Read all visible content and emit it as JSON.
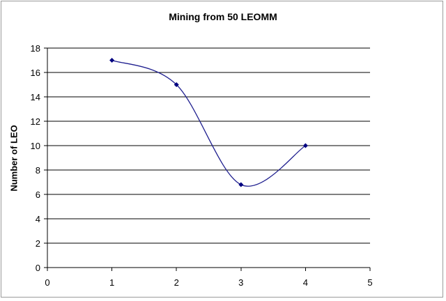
{
  "chart_data": {
    "type": "line",
    "title": "Mining from 50 LEOMM",
    "xlabel": "",
    "ylabel": "Number of LEO",
    "xlim": [
      0,
      5
    ],
    "ylim": [
      0,
      18
    ],
    "x_ticks": [
      0,
      1,
      2,
      3,
      4,
      5
    ],
    "y_ticks": [
      0,
      2,
      4,
      6,
      8,
      10,
      12,
      14,
      16,
      18
    ],
    "grid": "horizontal",
    "legend": "none",
    "smooth": true,
    "line_color": "#1f1f8f",
    "series": [
      {
        "x": [
          1,
          2,
          3,
          4
        ],
        "values": [
          17,
          15,
          6.8,
          10
        ]
      }
    ]
  }
}
